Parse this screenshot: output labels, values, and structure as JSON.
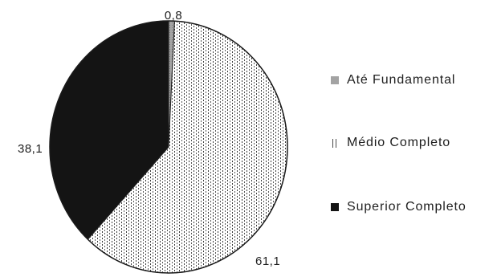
{
  "chart_data": {
    "type": "pie",
    "title": "",
    "categories": [
      "Até Fundamental",
      "Médio Completo",
      "Superior Completo"
    ],
    "values": [
      0.8,
      61.1,
      38.1
    ],
    "data_labels": [
      "0,8",
      "61,1",
      "38,1"
    ],
    "colors": [
      "#a3a3a3",
      "#4a4a4a",
      "#141414"
    ],
    "start_angle": "12 o'clock",
    "direction": "clockwise",
    "legend_position": "right"
  }
}
